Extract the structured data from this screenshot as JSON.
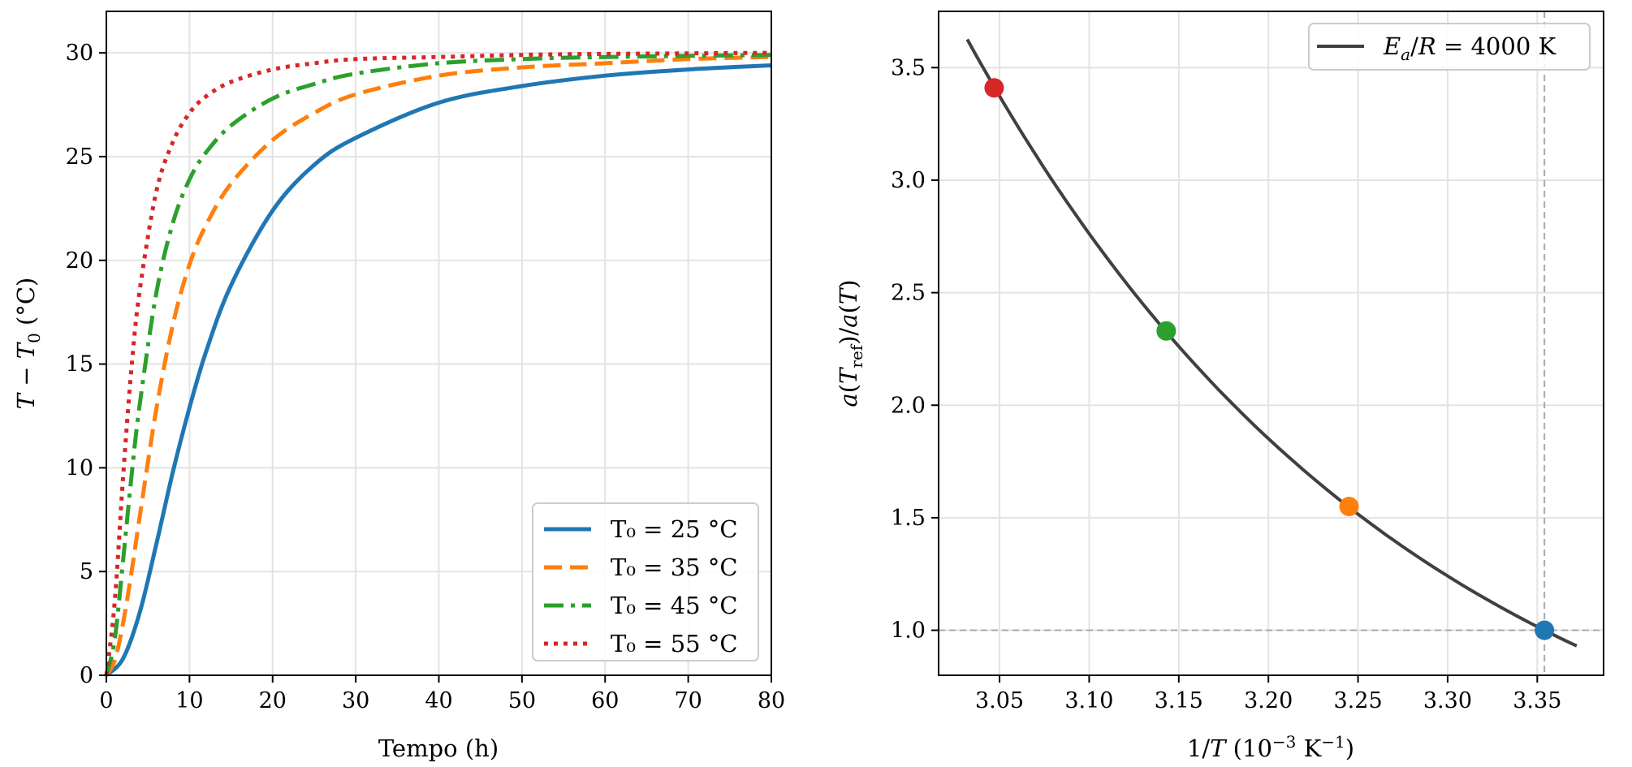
{
  "chart_data": [
    {
      "type": "line",
      "xlabel": "Tempo (h)",
      "ylabel": "T − T₀ (°C)",
      "xlim": [
        0,
        80
      ],
      "ylim": [
        0,
        32
      ],
      "xticks": [
        0,
        10,
        20,
        30,
        40,
        50,
        60,
        70,
        80
      ],
      "yticks": [
        0,
        5,
        10,
        15,
        20,
        25,
        30
      ],
      "grid": true,
      "legend_position": "bottom-right",
      "series": [
        {
          "name": "T₀ = 25 °C",
          "color": "#1f77b4",
          "dash": "solid",
          "x": [
            0,
            2,
            4,
            6,
            8,
            10,
            12,
            15,
            20,
            25,
            30,
            40,
            50,
            60,
            70,
            80
          ],
          "y": [
            0,
            0.8,
            3.0,
            6.3,
            9.8,
            12.9,
            15.6,
            18.8,
            22.4,
            24.6,
            25.9,
            27.6,
            28.4,
            28.9,
            29.2,
            29.4
          ]
        },
        {
          "name": "T₀ = 35 °C",
          "color": "#ff7f0e",
          "dash": "dashed",
          "x": [
            0,
            1,
            2,
            3,
            4,
            6,
            8,
            10,
            12,
            15,
            20,
            25,
            30,
            40,
            50,
            60,
            70,
            80
          ],
          "y": [
            0,
            0.7,
            2.5,
            4.9,
            7.6,
            12.8,
            16.9,
            19.8,
            21.7,
            23.7,
            25.8,
            27.1,
            28.0,
            28.9,
            29.3,
            29.5,
            29.7,
            29.8
          ]
        },
        {
          "name": "T₀ = 45 °C",
          "color": "#2ca02c",
          "dash": "dashdot",
          "x": [
            0,
            1,
            2,
            3,
            4,
            6,
            8,
            10,
            12,
            15,
            20,
            25,
            30,
            40,
            50,
            60,
            80
          ],
          "y": [
            0,
            1.7,
            5.5,
            9.5,
            13.0,
            18.4,
            21.8,
            23.9,
            25.2,
            26.5,
            27.8,
            28.5,
            29.0,
            29.5,
            29.7,
            29.8,
            29.9
          ]
        },
        {
          "name": "T₀ = 55 °C",
          "color": "#d62728",
          "dash": "dotted",
          "x": [
            0,
            1,
            2,
            3,
            4,
            6,
            8,
            10,
            12,
            15,
            20,
            25,
            30,
            40,
            50,
            60,
            80
          ],
          "y": [
            0,
            3.5,
            9.5,
            14.7,
            18.5,
            23.3,
            25.7,
            27.1,
            27.9,
            28.6,
            29.2,
            29.5,
            29.7,
            29.8,
            29.9,
            29.95,
            30.0
          ]
        }
      ]
    },
    {
      "type": "line",
      "xlabel": "1/T (10⁻³ K⁻¹)",
      "ylabel": "a(T_ref)/a(T)",
      "xlim": [
        3.016,
        3.387
      ],
      "ylim": [
        0.8,
        3.75
      ],
      "xticks": [
        3.05,
        3.1,
        3.15,
        3.2,
        3.25,
        3.3,
        3.35
      ],
      "yticks": [
        1.0,
        1.5,
        2.0,
        2.5,
        3.0,
        3.5
      ],
      "grid": true,
      "legend_position": "top-right",
      "curve": {
        "name": "Ea/R = 4000 K",
        "color": "#404040",
        "Ea_over_R": 4000,
        "Tref_inv": 3.354,
        "x_start": 3.032,
        "x_end": 3.372
      },
      "reference_lines": {
        "x": 3.354,
        "y": 1.0,
        "color": "#aaaaaa"
      },
      "points": [
        {
          "x": 3.047,
          "y": 3.41,
          "color": "#d62728"
        },
        {
          "x": 3.143,
          "y": 2.33,
          "color": "#2ca02c"
        },
        {
          "x": 3.245,
          "y": 1.55,
          "color": "#ff7f0e"
        },
        {
          "x": 3.354,
          "y": 1.0,
          "color": "#1f77b4"
        }
      ]
    }
  ]
}
